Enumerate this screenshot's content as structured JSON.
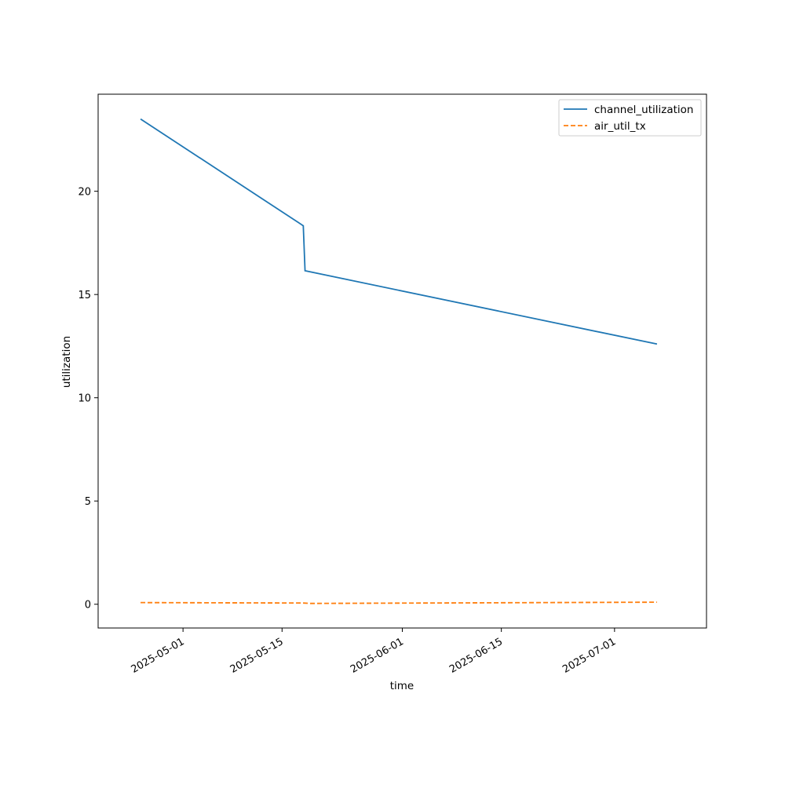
{
  "chart_data": {
    "type": "line",
    "title": "",
    "xlabel": "time",
    "ylabel": "utilization",
    "xlim": [
      "2025-04-19",
      "2025-07-14"
    ],
    "ylim": [
      -1.15,
      24.7
    ],
    "xticks": [
      "2025-05-01",
      "2025-05-15",
      "2025-06-01",
      "2025-06-15",
      "2025-07-01"
    ],
    "yticks": [
      0,
      5,
      10,
      15,
      20
    ],
    "grid": false,
    "legend": "top-right",
    "series": [
      {
        "name": "channel_utilization",
        "color": "#1f77b4",
        "dash": "solid",
        "points": [
          {
            "x": "2025-04-25",
            "y": 23.5
          },
          {
            "x": "2025-05-18",
            "y": 18.33
          },
          {
            "x": "2025-05-18T06:00",
            "y": 16.15
          },
          {
            "x": "2025-07-07",
            "y": 12.6
          }
        ]
      },
      {
        "name": "air_util_tx",
        "color": "#ff7f0e",
        "dash": "dashed",
        "points": [
          {
            "x": "2025-04-25",
            "y": 0.08
          },
          {
            "x": "2025-05-18",
            "y": 0.06
          },
          {
            "x": "2025-05-19",
            "y": 0.04
          },
          {
            "x": "2025-07-07",
            "y": 0.1
          }
        ]
      }
    ]
  }
}
